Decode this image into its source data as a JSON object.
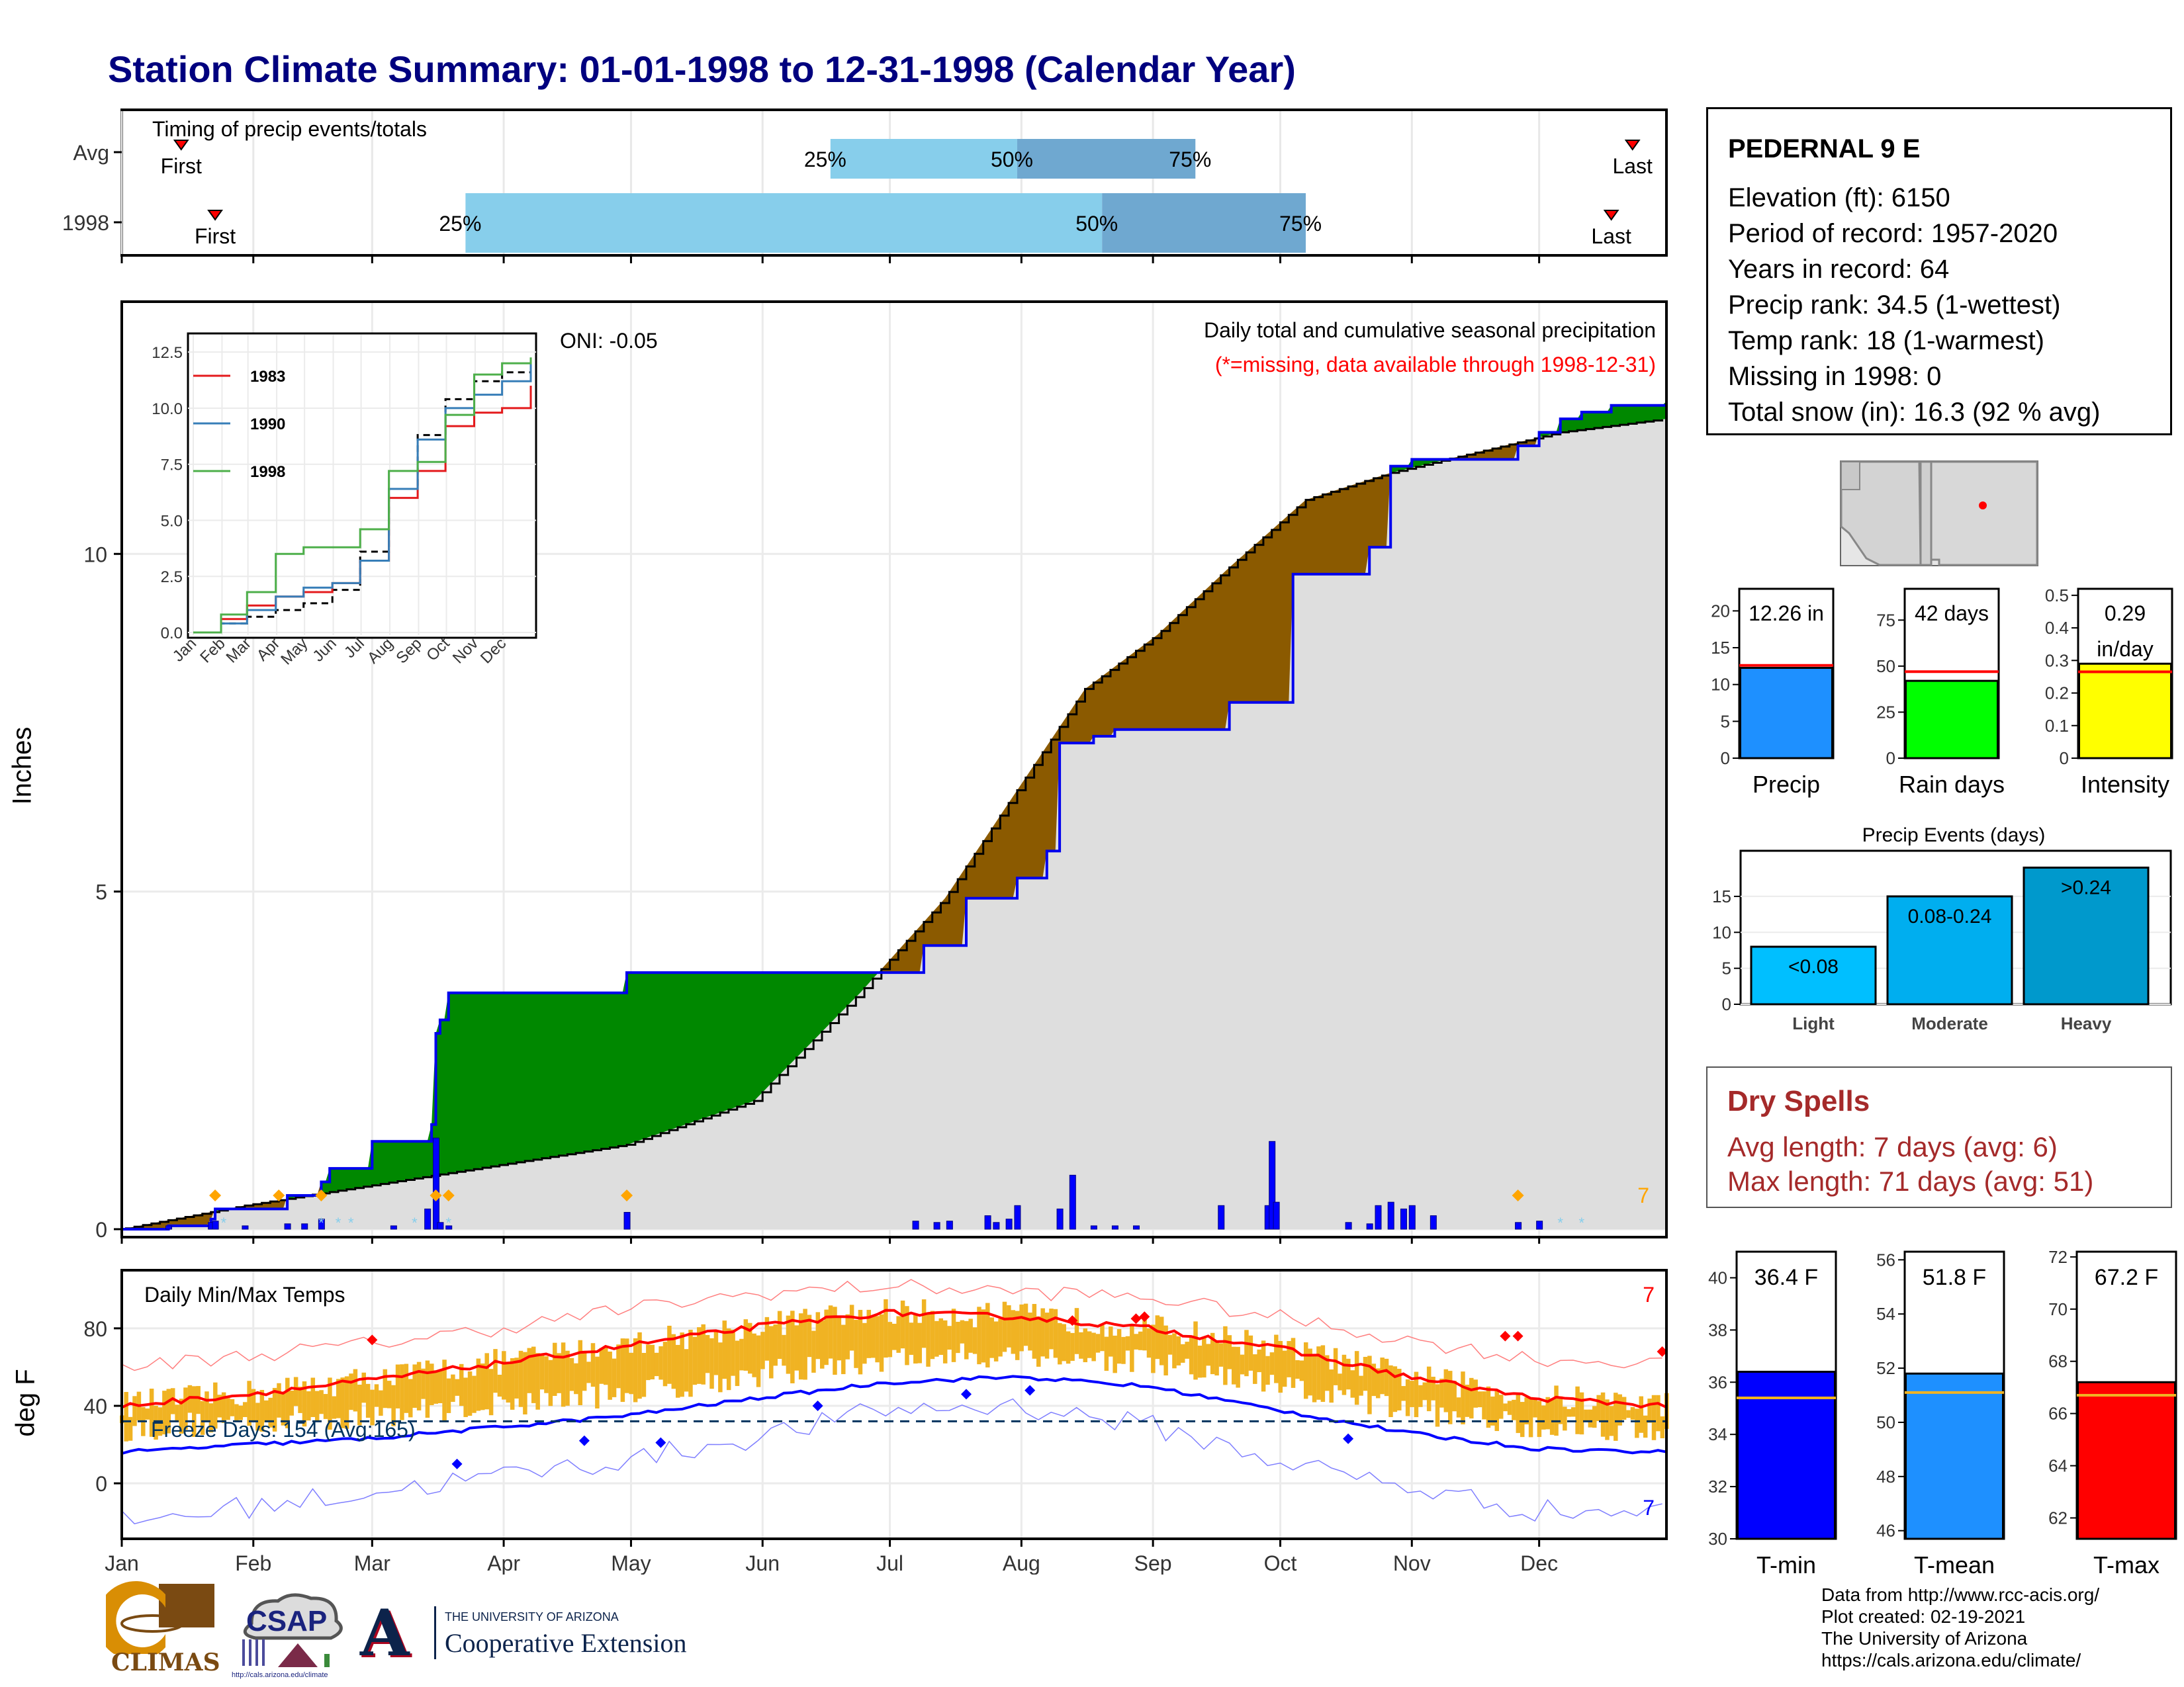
{
  "title": "Station Climate Summary: 01-01-1998 to 12-31-1998 (Calendar Year)",
  "timing_panel": {
    "title": "Timing of precip events/totals",
    "rows": [
      {
        "label": "Avg",
        "first_label": "First",
        "last_label": "Last",
        "first_day": 15,
        "last_day": 357,
        "q25": 168,
        "q50": 212,
        "q75": 254
      },
      {
        "label": "1998",
        "first_label": "First",
        "last_label": "Last",
        "first_day": 23,
        "last_day": 352,
        "q25": 82,
        "q50": 232,
        "q75": 280
      }
    ],
    "q_labels": [
      "25%",
      "50%",
      "75%"
    ]
  },
  "precip_panel": {
    "ylabel": "Inches",
    "yticks": [
      "0",
      "5",
      "10"
    ],
    "header": "Daily total and cumulative seasonal precipitation",
    "missing_note": "(*=missing, data available through 1998-12-31)",
    "oni": "ONI: -0.05",
    "corner_count": "7",
    "inset": {
      "yticks": [
        "0.0",
        "2.5",
        "5.0",
        "7.5",
        "10.0",
        "12.5"
      ],
      "xticks": [
        "Jan",
        "Feb",
        "Mar",
        "Apr",
        "May",
        "Jun",
        "Jul",
        "Aug",
        "Sep",
        "Oct",
        "Nov",
        "Dec"
      ],
      "legend": [
        {
          "name": "1983",
          "color": "#e41a1c"
        },
        {
          "name": "1990",
          "color": "#377eb8"
        },
        {
          "name": "1998",
          "color": "#4daf4a"
        }
      ]
    }
  },
  "temp_panel": {
    "ylabel": "deg F",
    "title": "Daily Min/Max Temps",
    "freeze": "Freeze Days: 154 (Avg:165)",
    "yticks": [
      "0",
      "40",
      "80"
    ],
    "count_top": "7",
    "count_bottom": "7"
  },
  "months": [
    "Jan",
    "Feb",
    "Mar",
    "Apr",
    "May",
    "Jun",
    "Jul",
    "Aug",
    "Sep",
    "Oct",
    "Nov",
    "Dec"
  ],
  "station": {
    "name": "PEDERNAL 9 E",
    "lines": [
      "Elevation (ft): 6150",
      "Period of record: 1957-2020",
      "Years in record: 64",
      "Precip rank: 34.5 (1-wettest)",
      "Temp rank: 18 (1-warmest)",
      "Missing in 1998: 0",
      "Total snow (in): 16.3 (92 % avg)"
    ]
  },
  "summary_bars": [
    {
      "label": "Precip",
      "value_text": "12.26 in",
      "value": 12.26,
      "avg": 12.6,
      "ymax": 23,
      "ticks": [
        0,
        5,
        10,
        15,
        20
      ],
      "color": "#1e90ff"
    },
    {
      "label": "Rain days",
      "value_text": "42 days",
      "value": 42,
      "avg": 47,
      "ymax": 92,
      "ticks": [
        0,
        25,
        50,
        75
      ],
      "color": "#00ff00"
    },
    {
      "label": "Intensity",
      "value_text": "0.29 in/day",
      "value": 0.29,
      "avg": 0.265,
      "ymax": 0.52,
      "ticks": [
        0.0,
        0.1,
        0.2,
        0.3,
        0.4,
        0.5
      ],
      "color": "#ffff00"
    }
  ],
  "precip_events": {
    "title": "Precip Events (days)",
    "bars": [
      {
        "category": "Light",
        "label": "<0.08",
        "value": 8,
        "color": "#00bfff"
      },
      {
        "category": "Moderate",
        "label": "0.08-0.24",
        "value": 15,
        "color": "#00aeef"
      },
      {
        "category": "Heavy",
        "label": ">0.24",
        "value": 19,
        "color": "#0099cc"
      }
    ],
    "yticks": [
      0,
      5,
      10,
      15
    ]
  },
  "dry_spells": {
    "title": "Dry Spells",
    "avg": "Avg length: 7 days (avg: 6)",
    "max": "Max length: 71 days (avg: 51)"
  },
  "temp_bars": [
    {
      "label": "T-min",
      "value_text": "36.4 F",
      "value": 36.4,
      "avg": 35.4,
      "ymin": 30,
      "ymax": 41,
      "ticks": [
        30,
        32,
        34,
        36,
        38,
        40
      ],
      "color": "#0000ff"
    },
    {
      "label": "T-mean",
      "value_text": "51.8 F",
      "value": 51.8,
      "avg": 51.1,
      "ymin": 45.7,
      "ymax": 56.3,
      "ticks": [
        46,
        48,
        50,
        52,
        54,
        56
      ],
      "color": "#1e90ff"
    },
    {
      "label": "T-max",
      "value_text": "67.2 F",
      "value": 67.2,
      "avg": 66.7,
      "ymin": 61.2,
      "ymax": 72.2,
      "ticks": [
        62,
        64,
        66,
        68,
        70,
        72
      ],
      "color": "#ff0000"
    }
  ],
  "credits": [
    "Data from http://www.rcc-acis.org/",
    "Plot created: 02-19-2021",
    "The University of Arizona",
    "https://cals.arizona.edu/climate/"
  ],
  "logos": {
    "climas": "CLIMAS",
    "csap": "CSAP",
    "csap_url": "http://cals.arizona.edu/climate",
    "ua_top": "THE UNIVERSITY OF ARIZONA",
    "ua_bottom": "Cooperative Extension",
    "ua_letter": "A"
  },
  "chart_data": [
    {
      "type": "area",
      "title": "Daily total and cumulative seasonal precipitation",
      "ylabel": "Inches",
      "ylim": [
        0,
        13.5
      ],
      "xlim": [
        1,
        365
      ],
      "x_unit": "day of year",
      "series": [
        {
          "name": "Avg",
          "x": [
            1,
            30,
            60,
            90,
            120,
            150,
            175,
            195,
            212,
            228,
            245,
            262,
            280,
            300,
            320,
            340,
            365
          ],
          "y": [
            0,
            0.35,
            0.65,
            0.95,
            1.25,
            1.9,
            3.5,
            4.9,
            6.5,
            8.0,
            8.8,
            9.8,
            10.8,
            11.2,
            11.5,
            11.8,
            12.0
          ]
        },
        {
          "name": "1998",
          "x": [
            1,
            12,
            22,
            23,
            31,
            40,
            45,
            48,
            50,
            60,
            68,
            74,
            75,
            76,
            78,
            120,
            175,
            190,
            200,
            212,
            219,
            222,
            230,
            235,
            240,
            262,
            277,
            285,
            295,
            300,
            305,
            330,
            335,
            340,
            345,
            352,
            365
          ],
          "y": [
            0,
            0.05,
            0.15,
            0.3,
            0.3,
            0.5,
            0.5,
            0.7,
            0.9,
            1.3,
            1.3,
            1.55,
            2.9,
            3.1,
            3.5,
            3.8,
            3.8,
            4.2,
            4.9,
            5.2,
            5.6,
            7.2,
            7.3,
            7.4,
            7.4,
            7.8,
            9.7,
            9.7,
            10.1,
            11.3,
            11.4,
            11.6,
            11.8,
            12.0,
            12.1,
            12.2,
            12.26
          ]
        }
      ],
      "daily_precip": {
        "x": [
          12,
          22,
          23,
          30,
          40,
          44,
          48,
          65,
          73,
          75,
          76,
          78,
          120,
          188,
          193,
          196,
          205,
          207,
          210,
          212,
          222,
          225,
          230,
          235,
          240,
          260,
          271,
          272,
          273,
          290,
          295,
          297,
          300,
          303,
          305,
          310,
          330,
          335
        ],
        "y": [
          0.05,
          0.1,
          0.12,
          0.05,
          0.08,
          0.08,
          0.15,
          0.05,
          0.3,
          1.35,
          0.1,
          0.05,
          0.25,
          0.12,
          0.1,
          0.12,
          0.2,
          0.1,
          0.15,
          0.35,
          0.3,
          0.8,
          0.05,
          0.05,
          0.05,
          0.35,
          0.35,
          1.3,
          0.4,
          0.1,
          0.08,
          0.35,
          0.4,
          0.3,
          0.35,
          0.2,
          0.1,
          0.12
        ]
      }
    },
    {
      "type": "line",
      "title": "Daily Min/Max Temps",
      "ylabel": "deg F",
      "ylim": [
        -30,
        110
      ],
      "x": [
        1,
        31,
        59,
        90,
        120,
        151,
        181,
        212,
        243,
        273,
        304,
        334,
        365
      ],
      "series": [
        {
          "name": "Avg max",
          "values": [
            40,
            46,
            53,
            62,
            71,
            81,
            88,
            86,
            80,
            70,
            55,
            44,
            40
          ]
        },
        {
          "name": "Avg min",
          "values": [
            16,
            20,
            23,
            29,
            35,
            44,
            52,
            55,
            50,
            38,
            26,
            18,
            16
          ]
        },
        {
          "name": "Record max",
          "values": [
            60,
            66,
            72,
            80,
            90,
            98,
            102,
            99,
            96,
            86,
            74,
            64,
            62
          ]
        },
        {
          "name": "Record min",
          "values": [
            -20,
            -12,
            -5,
            4,
            12,
            24,
            38,
            40,
            30,
            12,
            -2,
            -14,
            -15
          ]
        },
        {
          "name": "Freeze line",
          "values": [
            32,
            32,
            32,
            32,
            32,
            32,
            32,
            32,
            32,
            32,
            32,
            32,
            32
          ]
        }
      ]
    },
    {
      "type": "line",
      "title": "Cumulative precipitation comparison (inset)",
      "ylim": [
        0,
        13
      ],
      "x": [
        1,
        31,
        59,
        90,
        120,
        151,
        181,
        212,
        243,
        273,
        304,
        334,
        365
      ],
      "series": [
        {
          "name": "Avg",
          "values": [
            0,
            0.4,
            0.7,
            1.0,
            1.3,
            1.9,
            3.6,
            6.4,
            8.8,
            10.4,
            11.2,
            11.6,
            12.1
          ]
        },
        {
          "name": "1983",
          "values": [
            0,
            0.6,
            1.2,
            1.6,
            1.8,
            2.2,
            3.2,
            6.0,
            7.2,
            9.2,
            9.8,
            10.0,
            11.0
          ]
        },
        {
          "name": "1990",
          "values": [
            0,
            0.4,
            1.0,
            1.6,
            2.0,
            2.2,
            3.2,
            6.4,
            8.6,
            10.0,
            10.6,
            11.2,
            12.0
          ]
        },
        {
          "name": "1998",
          "values": [
            0,
            0.8,
            1.8,
            3.5,
            3.8,
            3.8,
            4.6,
            7.2,
            7.6,
            9.7,
            11.5,
            12.0,
            12.26
          ]
        }
      ]
    }
  ]
}
